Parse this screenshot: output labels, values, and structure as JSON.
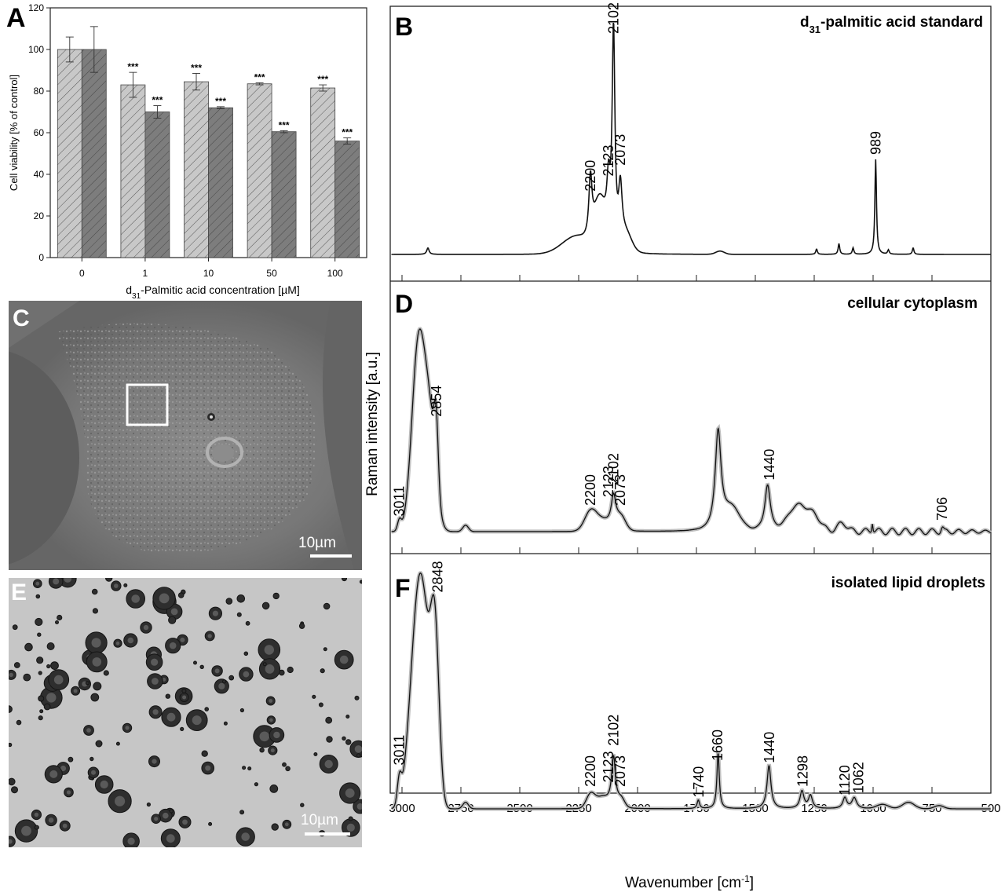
{
  "colors": {
    "bar_light": "#c8c8c8",
    "bar_dark": "#7d7d7d",
    "spectrum": "#111111",
    "spectrum_halo": "#b9b9b9"
  },
  "panels": {
    "A": {
      "letter": "A",
      "ylabel": "Cell viability [% of control]",
      "xlabel_main": "-Palmitic acid concentration [",
      "xlabel_d": "d",
      "xlabel_sub": "31",
      "xlabel_mu": "µ",
      "xlabel_end": "M]",
      "yticks": [
        "0",
        "20",
        "40",
        "60",
        "80",
        "100",
        "120"
      ]
    },
    "B": {
      "letter": "B",
      "title_d": "d",
      "title_sub": "31",
      "title_rest": "-palmitic acid standard"
    },
    "C": {
      "letter": "C",
      "scalebar": "10µm"
    },
    "D": {
      "letter": "D",
      "title": "cellular cytoplasm"
    },
    "E": {
      "letter": "E",
      "scalebar": "10µm"
    },
    "F": {
      "letter": "F",
      "title": "isolated lipid droplets"
    }
  },
  "spectra_axes": {
    "ylabel": "Raman intensity [a.u.]",
    "xlabel_main": "Wavenumber [cm",
    "xlabel_sup": "-1",
    "xlabel_end": "]",
    "xticks": [
      "3000",
      "2750",
      "2500",
      "2250",
      "2000",
      "1750",
      "1500",
      "1250",
      "1000",
      "750",
      "500"
    ]
  },
  "chart_data": [
    {
      "type": "bar",
      "panel": "A",
      "categories": [
        "0",
        "1",
        "10",
        "50",
        "100"
      ],
      "ylim": [
        0,
        120
      ],
      "series": [
        {
          "values": [
            100,
            83,
            84.5,
            83.5,
            81.5
          ],
          "errors": [
            6,
            6,
            4,
            0.5,
            1.5
          ],
          "significance": [
            "",
            "***",
            "***",
            "***",
            "***"
          ]
        },
        {
          "values": [
            100,
            70,
            72,
            60.5,
            56
          ],
          "errors": [
            11,
            3,
            0.5,
            0.5,
            1.5
          ],
          "significance": [
            "",
            "***",
            "***",
            "***",
            "***"
          ]
        }
      ]
    },
    {
      "type": "line",
      "panel": "B",
      "xlim": [
        3050,
        500
      ],
      "peaks": [
        {
          "x": 2200,
          "y": 0.27,
          "label": "2200"
        },
        {
          "x": 2123,
          "y": 0.34,
          "label": "2123"
        },
        {
          "x": 2102,
          "y": 1.0,
          "label": "2102"
        },
        {
          "x": 2073,
          "y": 0.39,
          "label": "2073"
        },
        {
          "x": 989,
          "y": 0.44,
          "label": "989"
        }
      ]
    },
    {
      "type": "line",
      "panel": "D",
      "xlim": [
        3050,
        500
      ],
      "peaks": [
        {
          "x": 3011,
          "y": 0.05,
          "label": "3011"
        },
        {
          "x": 2854,
          "y": 0.52,
          "label": "2854"
        },
        {
          "x": 2200,
          "y": 0.1,
          "label": "2200"
        },
        {
          "x": 2123,
          "y": 0.14,
          "label": "2123"
        },
        {
          "x": 2102,
          "y": 0.2,
          "label": "2102"
        },
        {
          "x": 2073,
          "y": 0.1,
          "label": "2073"
        },
        {
          "x": 1440,
          "y": 0.22,
          "label": "1440"
        },
        {
          "x": 706,
          "y": 0.03,
          "label": "706"
        }
      ]
    },
    {
      "type": "line",
      "panel": "F",
      "xlim": [
        3050,
        500
      ],
      "peaks": [
        {
          "x": 3011,
          "y": 0.18,
          "label": "3011"
        },
        {
          "x": 2848,
          "y": 0.98,
          "label": "2848"
        },
        {
          "x": 2200,
          "y": 0.08,
          "label": "2200"
        },
        {
          "x": 2123,
          "y": 0.1,
          "label": "2123"
        },
        {
          "x": 2102,
          "y": 0.27,
          "label": "2102"
        },
        {
          "x": 2073,
          "y": 0.08,
          "label": "2073"
        },
        {
          "x": 1740,
          "y": 0.03,
          "label": "1740"
        },
        {
          "x": 1660,
          "y": 0.2,
          "label": "1660"
        },
        {
          "x": 1440,
          "y": 0.19,
          "label": "1440"
        },
        {
          "x": 1298,
          "y": 0.08,
          "label": "1298"
        },
        {
          "x": 1120,
          "y": 0.04,
          "label": "1120"
        },
        {
          "x": 1062,
          "y": 0.05,
          "label": "1062"
        }
      ]
    }
  ]
}
